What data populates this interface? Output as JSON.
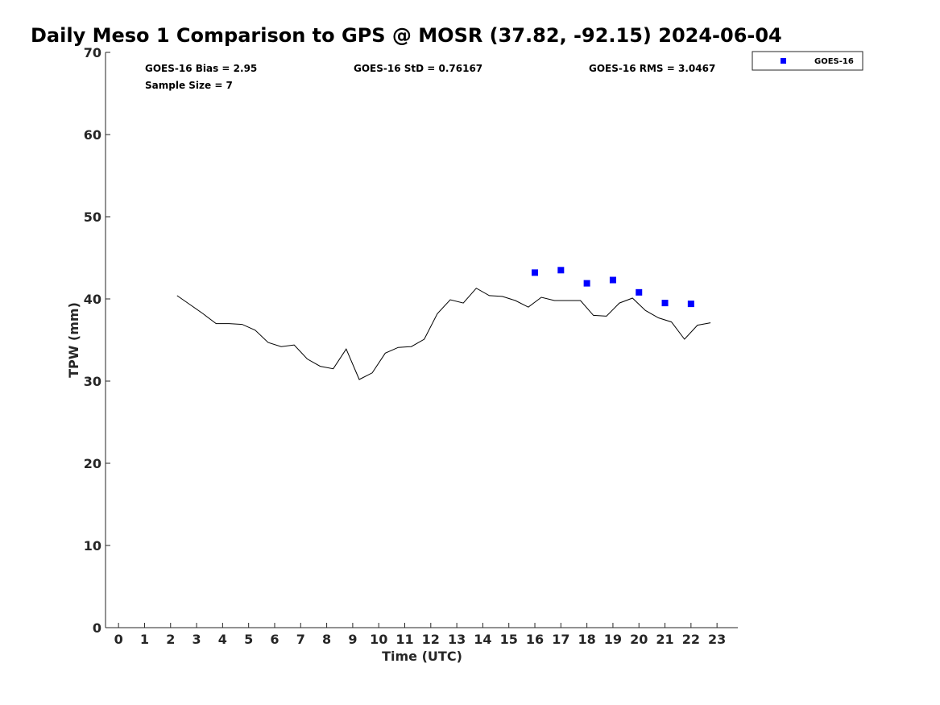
{
  "chart_data": {
    "type": "line",
    "title": "Daily Meso 1 Comparison to GPS @ MOSR (37.82, -92.15) 2024-06-04",
    "xlabel": "Time (UTC)",
    "ylabel": "TPW (mm)",
    "xlim": [
      -0.5,
      23.8
    ],
    "ylim": [
      0,
      70
    ],
    "x_ticks": [
      "0",
      "1",
      "2",
      "3",
      "4",
      "5",
      "6",
      "7",
      "8",
      "9",
      "10",
      "11",
      "12",
      "13",
      "14",
      "15",
      "16",
      "17",
      "18",
      "19",
      "20",
      "21",
      "22",
      "23"
    ],
    "y_ticks": [
      "0",
      "10",
      "20",
      "30",
      "40",
      "50",
      "60",
      "70"
    ],
    "grid": false,
    "legend_position": "outside top-right",
    "stats": {
      "bias": "GOES-16 Bias = 2.95",
      "std": "GOES-16 StD = 0.76167",
      "rms": "GOES-16 RMS = 3.0467",
      "sample_size": "Sample Size = 7"
    },
    "series": [
      {
        "type": "line",
        "color": "#000000",
        "x": [
          2.25,
          2.75,
          3.25,
          3.75,
          4.25,
          4.75,
          5.25,
          5.75,
          6.25,
          6.75,
          7.25,
          7.75,
          8.25,
          8.75,
          9.25,
          9.75,
          10.25,
          10.75,
          11.25,
          11.75,
          12.25,
          12.75,
          13.25,
          13.75,
          14.25,
          14.75,
          15.25,
          15.75,
          16.25,
          16.75,
          17.25,
          17.75,
          18.25,
          18.75,
          19.25,
          19.75,
          20.25,
          20.75,
          21.25,
          21.75,
          22.25,
          22.75
        ],
        "y": [
          40.4,
          39.3,
          38.2,
          37.0,
          37.0,
          36.9,
          36.2,
          34.7,
          34.2,
          34.4,
          32.7,
          31.8,
          31.5,
          33.9,
          30.2,
          31.0,
          33.4,
          34.1,
          34.2,
          35.1,
          38.2,
          39.9,
          39.5,
          41.3,
          40.4,
          40.3,
          39.8,
          39.0,
          40.2,
          39.8,
          39.8,
          39.8,
          38.0,
          37.9,
          39.5,
          40.1,
          38.6,
          37.7,
          37.2,
          35.1,
          36.8,
          37.1
        ]
      },
      {
        "name": "GOES-16",
        "type": "scatter",
        "marker": "square",
        "color": "#0000ff",
        "x": [
          16,
          17,
          18,
          19,
          20,
          21,
          22
        ],
        "y": [
          43.2,
          43.5,
          41.9,
          42.3,
          40.8,
          39.5,
          39.4
        ]
      }
    ]
  }
}
